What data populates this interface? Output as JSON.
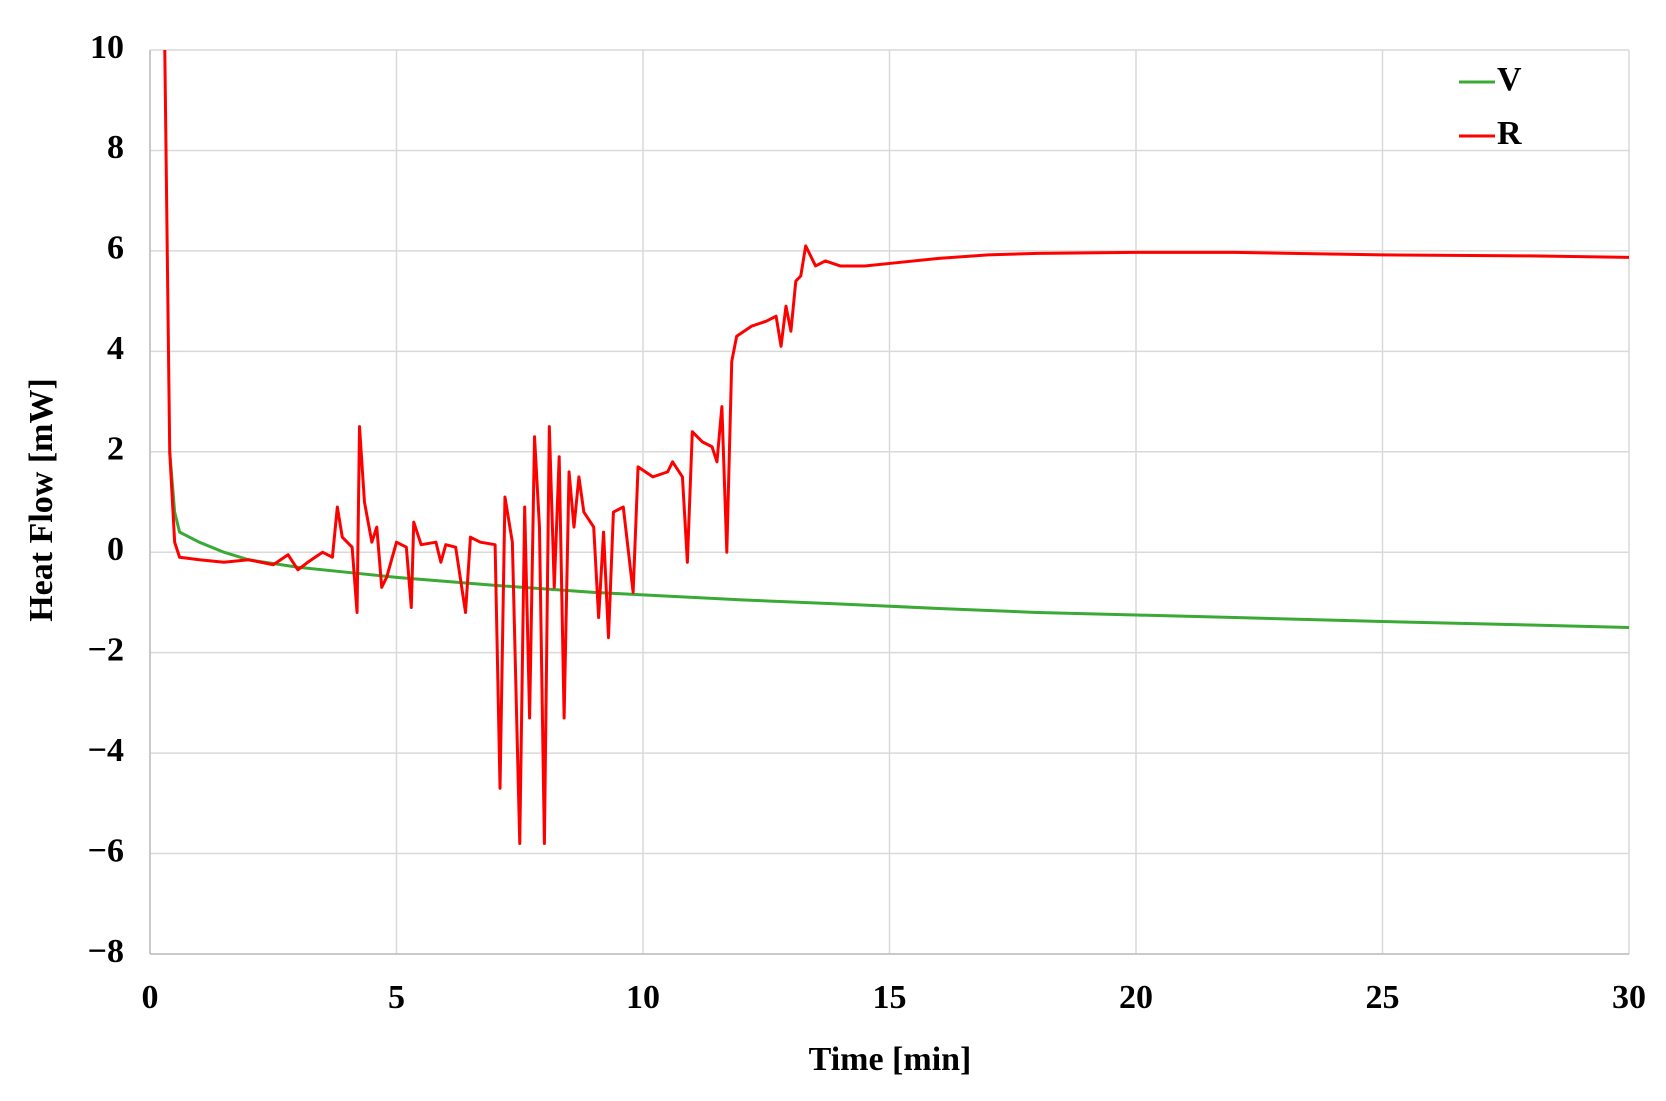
{
  "chart_data": {
    "type": "line",
    "xlabel": "Time [min]",
    "ylabel": "Heat Flow [mW]",
    "xlim": [
      0,
      30
    ],
    "xticks": [
      0,
      5,
      10,
      15,
      20,
      25,
      30
    ],
    "ylim": [
      -8,
      10
    ],
    "yticks": [
      {
        "value": -8,
        "label": "−8"
      },
      {
        "value": -6,
        "label": "−6"
      },
      {
        "value": -4,
        "label": "−4"
      },
      {
        "value": -2,
        "label": "−2"
      },
      0,
      2,
      4,
      6,
      8,
      10
    ],
    "grid": true,
    "legend": "upper right",
    "series": [
      {
        "name": "V",
        "color": "#3aa935",
        "x": [
          0.4,
          0.5,
          0.6,
          1,
          1.5,
          2,
          3,
          4,
          5,
          6,
          7,
          8,
          9,
          10,
          12,
          14,
          16,
          18,
          20,
          22,
          25,
          28,
          30
        ],
        "values": [
          2,
          0.8,
          0.4,
          0.2,
          0,
          -0.15,
          -0.3,
          -0.4,
          -0.5,
          -0.58,
          -0.66,
          -0.73,
          -0.8,
          -0.85,
          -0.95,
          -1.03,
          -1.12,
          -1.2,
          -1.25,
          -1.3,
          -1.38,
          -1.45,
          -1.5
        ]
      },
      {
        "name": "R",
        "color": "#ff0000",
        "x": [
          0.3,
          0.35,
          0.4,
          0.5,
          0.6,
          1,
          1.5,
          2,
          2.5,
          2.8,
          3,
          3.2,
          3.5,
          3.7,
          3.8,
          3.9,
          4.1,
          4.2,
          4.25,
          4.35,
          4.5,
          4.6,
          4.7,
          4.8,
          5,
          5.2,
          5.3,
          5.35,
          5.5,
          5.8,
          5.9,
          6,
          6.2,
          6.4,
          6.5,
          6.7,
          7,
          7.1,
          7.2,
          7.35,
          7.5,
          7.6,
          7.7,
          7.8,
          7.9,
          8,
          8.1,
          8.2,
          8.3,
          8.4,
          8.5,
          8.6,
          8.7,
          8.8,
          9,
          9.1,
          9.2,
          9.3,
          9.4,
          9.6,
          9.8,
          9.9,
          10.2,
          10.5,
          10.6,
          10.8,
          10.9,
          11,
          11.2,
          11.4,
          11.5,
          11.6,
          11.7,
          11.8,
          11.9,
          12.2,
          12.5,
          12.7,
          12.8,
          12.9,
          13,
          13.1,
          13.2,
          13.3,
          13.5,
          13.7,
          14,
          14.5,
          15,
          16,
          17,
          18,
          20,
          22,
          25,
          28,
          30
        ],
        "values": [
          10,
          6,
          2,
          0.2,
          -0.1,
          -0.15,
          -0.2,
          -0.15,
          -0.25,
          -0.05,
          -0.35,
          -0.2,
          0,
          -0.1,
          0.9,
          0.3,
          0.1,
          -1.2,
          2.5,
          1,
          0.2,
          0.5,
          -0.7,
          -0.5,
          0.2,
          0.1,
          -1.1,
          0.6,
          0.15,
          0.2,
          -0.2,
          0.15,
          0.1,
          -1.2,
          0.3,
          0.2,
          0.15,
          -4.7,
          1.1,
          0.2,
          -5.8,
          0.9,
          -3.3,
          2.3,
          0.5,
          -5.8,
          2.5,
          -0.7,
          1.9,
          -3.3,
          1.6,
          0.5,
          1.5,
          0.8,
          0.5,
          -1.3,
          0.4,
          -1.7,
          0.8,
          0.9,
          -0.8,
          1.7,
          1.5,
          1.6,
          1.8,
          1.5,
          -0.2,
          2.4,
          2.2,
          2.1,
          1.8,
          2.9,
          0,
          3.8,
          4.3,
          4.5,
          4.6,
          4.7,
          4.1,
          4.9,
          4.4,
          5.4,
          5.5,
          6.1,
          5.7,
          5.8,
          5.7,
          5.7,
          5.75,
          5.85,
          5.92,
          5.95,
          5.97,
          5.97,
          5.92,
          5.9,
          5.87
        ]
      }
    ]
  }
}
